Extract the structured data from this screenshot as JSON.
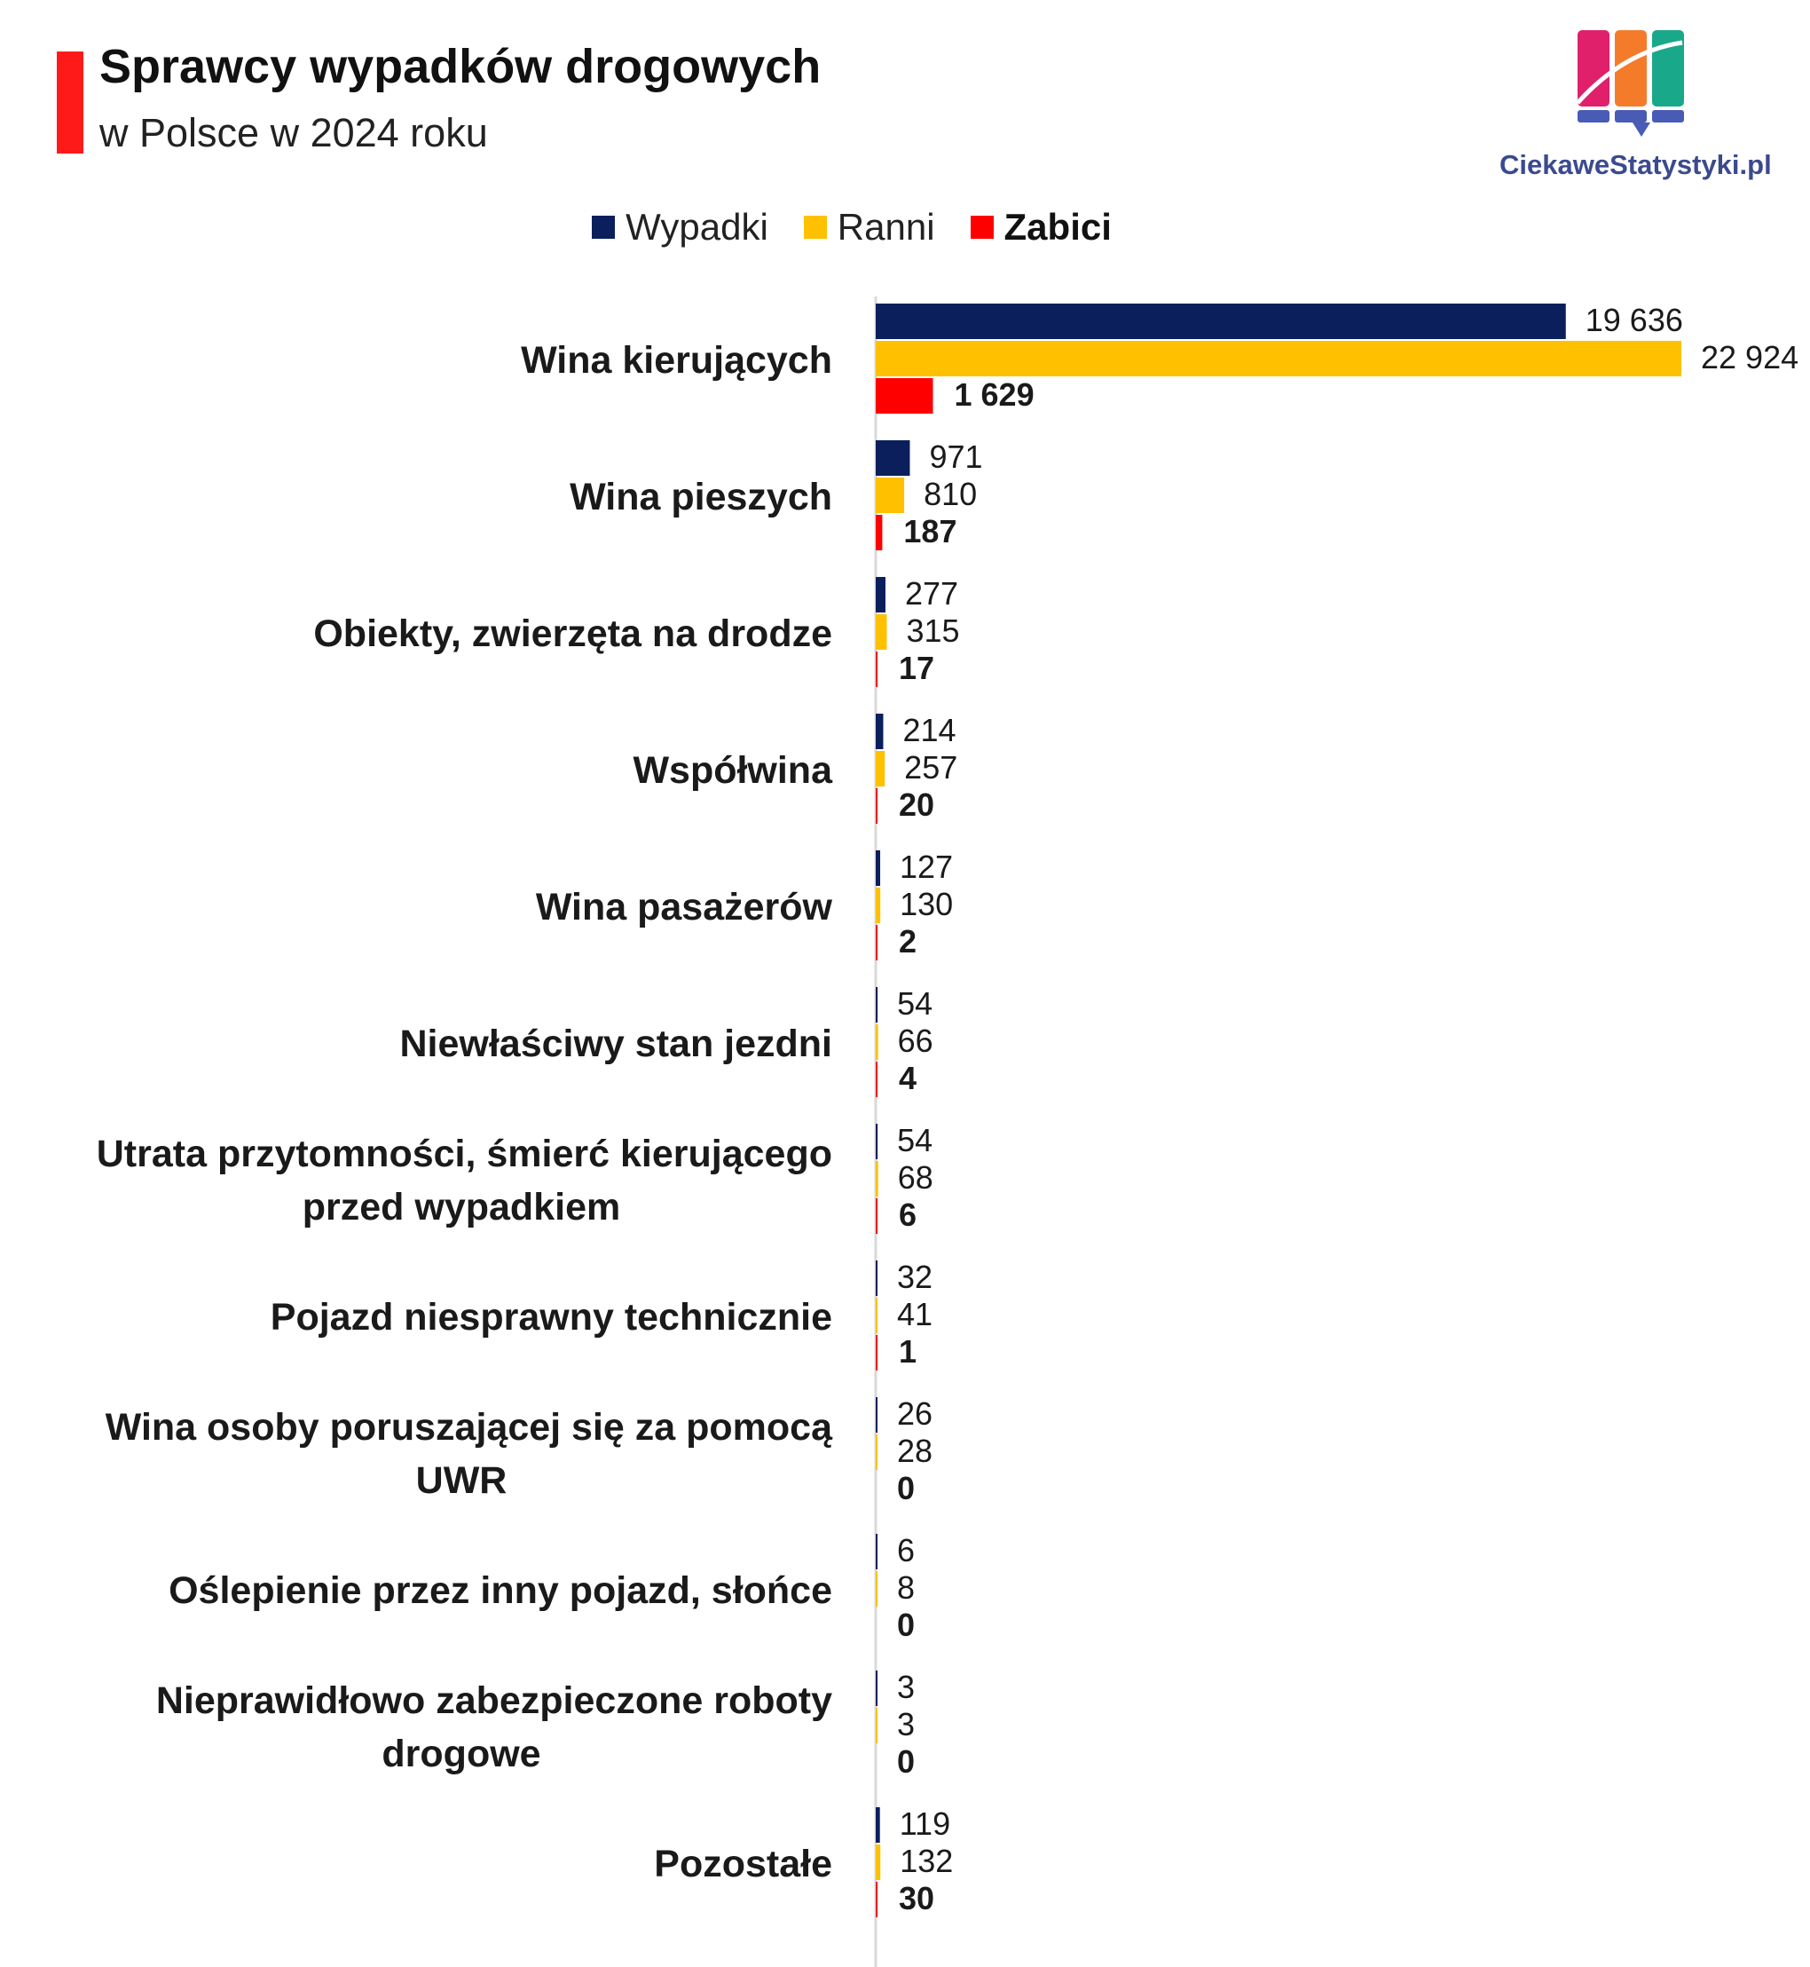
{
  "header": {
    "title": "Sprawcy wypadków drogowych",
    "subtitle": "w Polsce w 2024 roku"
  },
  "brand": {
    "logo_text": "CiekaweStatystyki.pl",
    "logo_icon": "bar-chart-speech-bubble-icon"
  },
  "colors": {
    "accent": "#ff1a1a",
    "wypadki": "#0a1f5c",
    "ranni": "#ffc000",
    "zabici": "#ff0000",
    "axis": "#d9d9d9"
  },
  "chart_data": {
    "type": "bar",
    "orientation": "horizontal",
    "title": "Sprawcy wypadków drogowych w Polsce w 2024 roku",
    "legend_position": "top",
    "categories": [
      [
        "Wina kierujących"
      ],
      [
        "Wina pieszych"
      ],
      [
        "Obiekty, zwierzęta na drodze"
      ],
      [
        "Współwina"
      ],
      [
        "Wina pasażerów"
      ],
      [
        "Niewłaściwy stan jezdni"
      ],
      [
        "Utrata przytomności, śmierć kierującego",
        "przed wypadkiem"
      ],
      [
        "Pojazd niesprawny technicznie"
      ],
      [
        "Wina osoby poruszającej się za pomocą",
        "UWR"
      ],
      [
        "Oślepienie przez inny pojazd, słońce"
      ],
      [
        "Nieprawidłowo zabezpieczone roboty",
        "drogowe"
      ],
      [
        "Pozostałe"
      ]
    ],
    "series": [
      {
        "name": "Wypadki",
        "color": "#0a1f5c",
        "bold": false,
        "values": [
          19636,
          971,
          277,
          214,
          127,
          54,
          54,
          32,
          26,
          6,
          3,
          119
        ],
        "labels": [
          "19 636",
          "971",
          "277",
          "214",
          "127",
          "54",
          "54",
          "32",
          "26",
          "6",
          "3",
          "119"
        ]
      },
      {
        "name": "Ranni",
        "color": "#ffc000",
        "bold": false,
        "values": [
          22924,
          810,
          315,
          257,
          130,
          66,
          68,
          41,
          28,
          8,
          3,
          132
        ],
        "labels": [
          "22 924",
          "810",
          "315",
          "257",
          "130",
          "66",
          "68",
          "41",
          "28",
          "8",
          "3",
          "132"
        ]
      },
      {
        "name": "Zabici",
        "color": "#ff0000",
        "bold": true,
        "values": [
          1629,
          187,
          17,
          20,
          2,
          4,
          6,
          1,
          0,
          0,
          0,
          30
        ],
        "labels": [
          "1 629",
          "187",
          "17",
          "20",
          "2",
          "4",
          "6",
          "1",
          "0",
          "0",
          "0",
          "30"
        ]
      }
    ],
    "xlim": [
      0,
      22924
    ],
    "grid": false,
    "xlabel": "",
    "ylabel": ""
  }
}
